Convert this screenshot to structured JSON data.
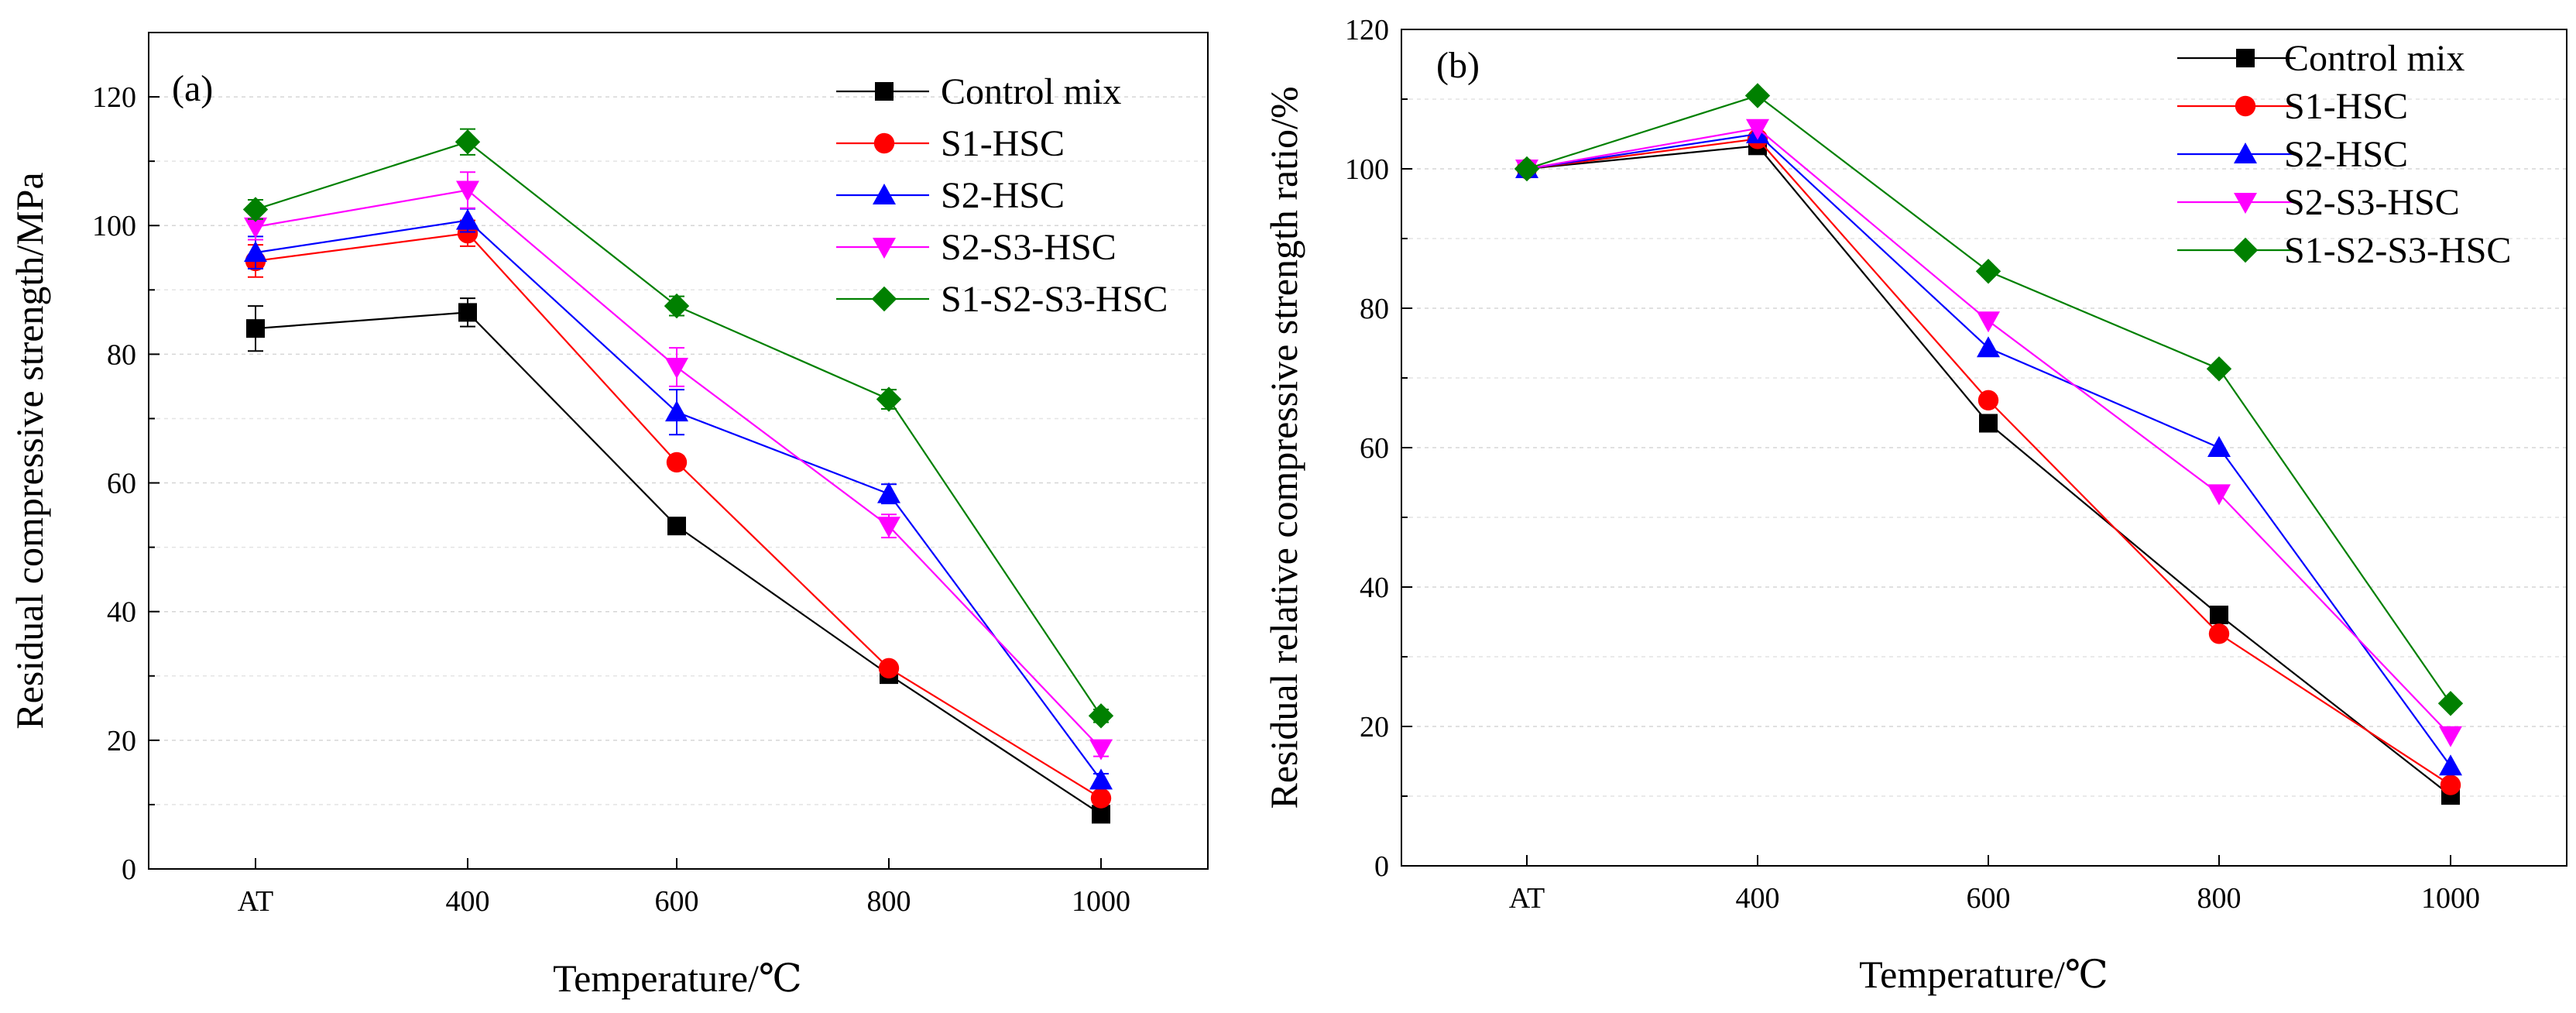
{
  "colors": {
    "Control mix": "#000000",
    "S1-HSC": "#ff0000",
    "S2-HSC": "#0000ff",
    "S2-S3-HSC": "#ff00ff",
    "S1-S2-S3-HSC": "#008000"
  },
  "chart_data": [
    {
      "type": "line",
      "panel": "(a)",
      "categories": [
        "AT",
        "400",
        "600",
        "800",
        "1000"
      ],
      "xlabel": "Temperature/℃",
      "ylabel": "Residual compressive strength/MPa",
      "ylim": [
        0,
        130
      ],
      "yticks": [
        0,
        20,
        40,
        60,
        80,
        100,
        120
      ],
      "grid": true,
      "legend_position": "top-right",
      "series": [
        {
          "name": "Control mix",
          "marker": "square",
          "values": [
            84,
            86.5,
            53.3,
            30.2,
            8.5
          ],
          "errors": [
            3.5,
            2.2,
            1.2,
            0.8,
            0.5
          ]
        },
        {
          "name": "S1-HSC",
          "marker": "circle",
          "values": [
            94.5,
            98.8,
            63.2,
            31.2,
            11.0
          ],
          "errors": [
            2.5,
            2.0,
            1.0,
            0.8,
            0.8
          ]
        },
        {
          "name": "S2-HSC",
          "marker": "triangle-up",
          "values": [
            95.8,
            100.8,
            71.0,
            58.3,
            13.8
          ],
          "errors": [
            2.5,
            1.8,
            3.5,
            1.5,
            1.0
          ]
        },
        {
          "name": "S2-S3-HSC",
          "marker": "triangle-down",
          "values": [
            99.8,
            105.5,
            78.0,
            53.3,
            18.7
          ],
          "errors": [
            2.0,
            2.8,
            3.0,
            1.8,
            1.2
          ]
        },
        {
          "name": "S1-S2-S3-HSC",
          "marker": "diamond",
          "values": [
            102.5,
            113.0,
            87.5,
            73.0,
            23.8
          ],
          "errors": [
            1.5,
            2.0,
            1.5,
            1.5,
            1.0
          ]
        }
      ]
    },
    {
      "type": "line",
      "panel": "(b)",
      "categories": [
        "AT",
        "400",
        "600",
        "800",
        "1000"
      ],
      "xlabel": "Temperature/℃",
      "ylabel": "Residual relative compressive strength ratio/%",
      "ylim": [
        0,
        120
      ],
      "yticks": [
        0,
        20,
        40,
        60,
        80,
        100,
        120
      ],
      "grid": true,
      "legend_position": "top-right",
      "series": [
        {
          "name": "Control mix",
          "marker": "square",
          "values": [
            100,
            103.3,
            63.5,
            36.0,
            10.1
          ]
        },
        {
          "name": "S1-HSC",
          "marker": "circle",
          "values": [
            100,
            104.3,
            66.8,
            33.3,
            11.6
          ]
        },
        {
          "name": "S2-HSC",
          "marker": "triangle-up",
          "values": [
            100,
            105.0,
            74.3,
            60.0,
            14.3
          ]
        },
        {
          "name": "S2-S3-HSC",
          "marker": "triangle-down",
          "values": [
            100,
            105.8,
            78.2,
            53.4,
            18.7
          ]
        },
        {
          "name": "S1-S2-S3-HSC",
          "marker": "diamond",
          "values": [
            100,
            110.5,
            85.3,
            71.3,
            23.3
          ]
        }
      ]
    }
  ]
}
